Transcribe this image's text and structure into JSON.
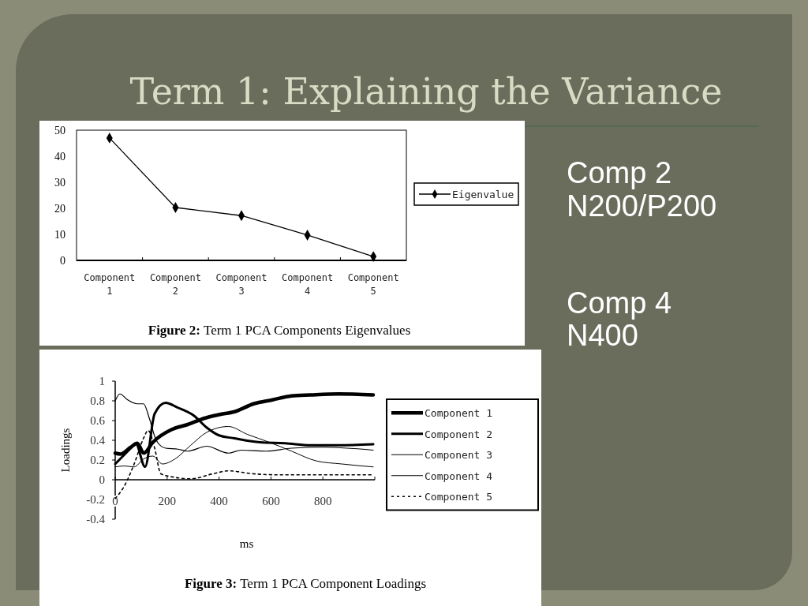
{
  "chart_data": [
    {
      "type": "other",
      "title": "Term 1: Explaining the Variance",
      "annotations": [
        "Comp 2",
        "N200/P200",
        "Comp 4",
        "N400"
      ]
    },
    {
      "type": "line",
      "categories": [
        "Component 1",
        "Component 2",
        "Component 3",
        "Component 4",
        "Component 5"
      ],
      "series": [
        {
          "name": "Eigenvalue",
          "color": "#000000",
          "values": [
            47,
            20.3,
            17.2,
            9.7,
            1.5
          ]
        }
      ],
      "ylim": [
        0,
        50
      ],
      "yticks": [
        0,
        10,
        20,
        30,
        40,
        50
      ],
      "marker": "diamond",
      "legend": "right",
      "annotations": [
        "Figure 2: Term 1 PCA Components Eigenvalues"
      ]
    },
    {
      "type": "line",
      "xlabel": "ms",
      "ylabel": "Loadings",
      "xlim": [
        0,
        1000
      ],
      "xticks": [
        0,
        200,
        400,
        600,
        800
      ],
      "ylim": [
        -0.4,
        1
      ],
      "yticks": [
        -0.4,
        -0.2,
        0,
        0.2,
        0.4,
        0.6,
        0.8,
        1
      ],
      "legend": "right",
      "series": [
        {
          "name": "Component 1",
          "color": "#000000",
          "x": [
            0,
            20,
            60,
            85,
            110,
            145,
            218,
            279,
            339,
            400,
            460,
            533,
            606,
            679,
            752,
            860,
            994
          ],
          "values": [
            0.27,
            0.26,
            0.33,
            0.37,
            0.27,
            0.38,
            0.51,
            0.56,
            0.62,
            0.66,
            0.69,
            0.77,
            0.81,
            0.85,
            0.86,
            0.87,
            0.86
          ]
        },
        {
          "name": "Component 2",
          "color": "#000000",
          "x": [
            0,
            60,
            79,
            115,
            152,
            194,
            242,
            303,
            352,
            400,
            460,
            558,
            655,
            752,
            860,
            994
          ],
          "values": [
            0.16,
            0.32,
            0.37,
            0.13,
            0.67,
            0.78,
            0.73,
            0.65,
            0.53,
            0.45,
            0.42,
            0.38,
            0.37,
            0.35,
            0.35,
            0.36
          ]
        },
        {
          "name": "Component 3",
          "color": "#000000",
          "x": [
            0,
            18,
            48,
            85,
            109,
            133,
            158,
            194,
            242,
            279,
            352,
            436,
            485,
            582,
            679,
            800,
            994
          ],
          "values": [
            0.8,
            0.87,
            0.81,
            0.77,
            0.77,
            0.61,
            0.4,
            0.32,
            0.31,
            0.29,
            0.34,
            0.27,
            0.3,
            0.29,
            0.32,
            0.33,
            0.3
          ]
        },
        {
          "name": "Component 4",
          "color": "#000000",
          "x": [
            0,
            36,
            73,
            109,
            145,
            182,
            230,
            291,
            352,
            436,
            509,
            594,
            679,
            776,
            873,
            994
          ],
          "values": [
            0.13,
            0.14,
            0.13,
            0.21,
            0.24,
            0.16,
            0.21,
            0.35,
            0.48,
            0.54,
            0.46,
            0.38,
            0.29,
            0.19,
            0.16,
            0.13
          ]
        },
        {
          "name": "Component 5",
          "color": "#000000",
          "line_style": "dotted",
          "x": [
            0,
            36,
            73,
            109,
            127,
            152,
            176,
            218,
            291,
            376,
            436,
            533,
            630,
            776,
            873,
            994
          ],
          "values": [
            -0.19,
            -0.06,
            0.16,
            0.42,
            0.5,
            0.32,
            0.06,
            0.03,
            0.01,
            0.06,
            0.09,
            0.06,
            0.05,
            0.05,
            0.05,
            0.05
          ]
        }
      ],
      "annotations": [
        "Figure 3: Term 1 PCA Component Loadings"
      ]
    }
  ]
}
